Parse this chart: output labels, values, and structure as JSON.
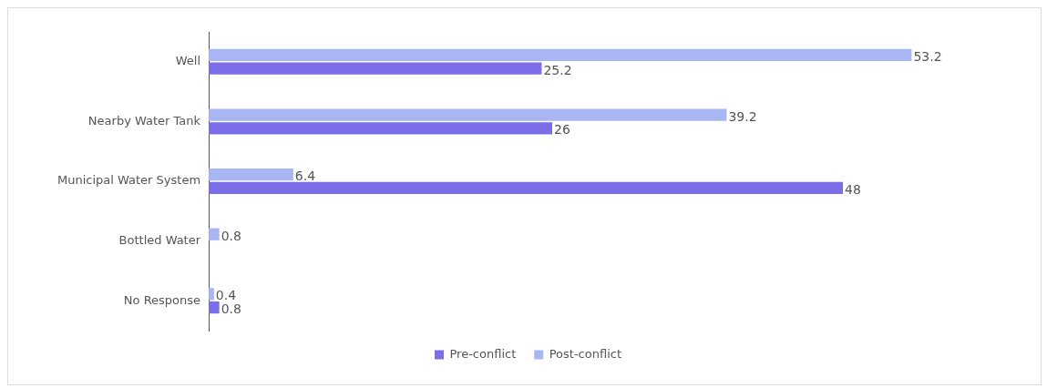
{
  "chart_data": {
    "type": "bar",
    "orientation": "horizontal",
    "categories": [
      "Well",
      "Nearby Water Tank",
      "Municipal Water System",
      "Bottled Water",
      "No Response"
    ],
    "series": [
      {
        "name": "Post-conflict",
        "color": "#a9b6f4",
        "values": [
          53.2,
          39.2,
          6.4,
          0.8,
          0.4
        ]
      },
      {
        "name": "Pre-conflict",
        "color": "#7c6ee8",
        "values": [
          25.2,
          26,
          48,
          null,
          0.8
        ]
      }
    ],
    "data_labels": true,
    "legend": "bottom"
  }
}
